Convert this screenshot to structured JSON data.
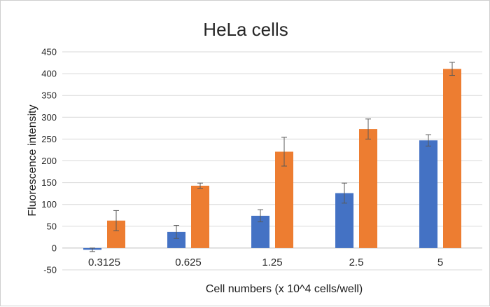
{
  "chart_data": {
    "type": "bar",
    "title": "HeLa cells",
    "xlabel": "Cell numbers (x 10^4 cells/well)",
    "ylabel": "Fluorescence intensity",
    "categories": [
      "0.3125",
      "0.625",
      "1.25",
      "2.5",
      "5"
    ],
    "ylim": [
      -50,
      450
    ],
    "yticks": [
      -50,
      0,
      50,
      100,
      150,
      200,
      250,
      300,
      350,
      400,
      450
    ],
    "grid": true,
    "legend": "none",
    "series": [
      {
        "color": "#4472C4",
        "values": [
          -4,
          37,
          74,
          126,
          247
        ],
        "errors": [
          4,
          15,
          14,
          23,
          13
        ]
      },
      {
        "color": "#ED7D31",
        "values": [
          63,
          143,
          221,
          273,
          411
        ],
        "errors": [
          23,
          6,
          33,
          23,
          15
        ]
      }
    ]
  }
}
